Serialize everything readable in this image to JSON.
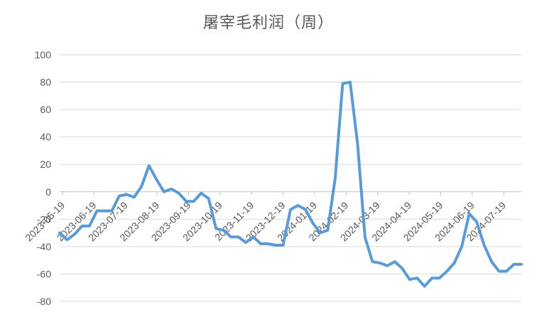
{
  "chart_data": {
    "type": "line",
    "title": "屠宰毛利润（周）",
    "xlabel": "",
    "ylabel": "",
    "ylim": [
      -80,
      100
    ],
    "yticks": [
      100,
      80,
      60,
      40,
      20,
      0,
      -20,
      -40,
      -60,
      -80
    ],
    "xtick_labels": [
      "2023-05-19",
      "2023-06-19",
      "2023-07-19",
      "2023-08-19",
      "2023-09-19",
      "2023-10-19",
      "2023-11-19",
      "2023-12-19",
      "2024-01-19",
      "2024-02-19",
      "2024-03-19",
      "2024-04-19",
      "2024-05-19",
      "2024-06-19",
      "2024-07-19"
    ],
    "grid": "horizontal",
    "line_color": "#5B9BD5",
    "series": [
      {
        "values": [
          -30,
          -35,
          -31,
          -25,
          -25,
          -14,
          -14,
          -14,
          -3,
          -2,
          -4,
          4,
          19,
          9,
          0,
          2,
          -1,
          -7,
          -7,
          -1,
          -5,
          -27,
          -28,
          -33,
          -33,
          -37,
          -33,
          -38,
          -38,
          -39,
          -39,
          -13,
          -10,
          -13,
          -23,
          -30,
          -28,
          10,
          79,
          80,
          35,
          -33,
          -51,
          -52,
          -54,
          -51,
          -56,
          -64,
          -63,
          -69,
          -63,
          -63,
          -58,
          -52,
          -40,
          -16,
          -22,
          -39,
          -51,
          -58,
          -58,
          -53,
          -53
        ]
      }
    ]
  }
}
